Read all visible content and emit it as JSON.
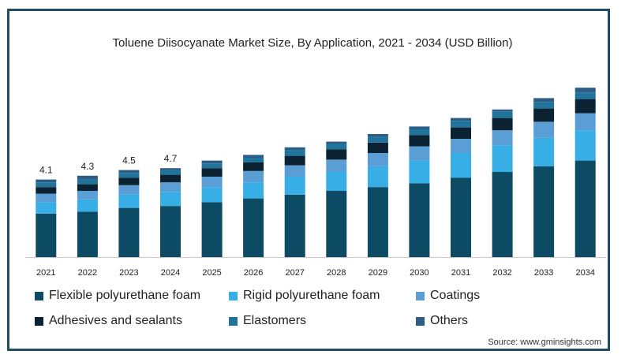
{
  "chart_data": {
    "type": "bar",
    "stacked": true,
    "title": "Toluene Diisocyanate Market Size, By Application, 2021 - 2034 (USD Billion)",
    "categories": [
      "2021",
      "2022",
      "2023",
      "2024",
      "2025",
      "2026",
      "2027",
      "2028",
      "2029",
      "2030",
      "2031",
      "2032",
      "2033",
      "2034"
    ],
    "totals_labels": [
      "4.1",
      "4.3",
      "4.5",
      "4.7",
      "",
      "",
      "",
      "",
      "",
      "",
      "",
      "",
      "",
      ""
    ],
    "series": [
      {
        "name": "Flexible polyurethane foam",
        "color": "#0d4a63",
        "values": [
          2.3,
          2.4,
          2.6,
          2.7,
          2.9,
          3.1,
          3.3,
          3.5,
          3.7,
          3.9,
          4.2,
          4.5,
          4.8,
          5.1
        ]
      },
      {
        "name": "Rigid polyurethane foam",
        "color": "#38aee6",
        "values": [
          0.6,
          0.65,
          0.7,
          0.75,
          0.8,
          0.85,
          0.95,
          1.0,
          1.1,
          1.2,
          1.3,
          1.4,
          1.5,
          1.6
        ]
      },
      {
        "name": "Coatings",
        "color": "#5b9ed6",
        "values": [
          0.45,
          0.45,
          0.5,
          0.5,
          0.55,
          0.6,
          0.6,
          0.65,
          0.7,
          0.75,
          0.75,
          0.8,
          0.85,
          0.9
        ]
      },
      {
        "name": "Adhesives and sealants",
        "color": "#0b2233",
        "values": [
          0.35,
          0.35,
          0.4,
          0.4,
          0.45,
          0.45,
          0.5,
          0.55,
          0.55,
          0.6,
          0.6,
          0.65,
          0.7,
          0.75
        ]
      },
      {
        "name": "Elastomers",
        "color": "#20739b",
        "values": [
          0.25,
          0.25,
          0.25,
          0.25,
          0.25,
          0.25,
          0.3,
          0.3,
          0.3,
          0.3,
          0.35,
          0.35,
          0.35,
          0.35
        ]
      },
      {
        "name": "Others",
        "color": "#2b5d86",
        "values": [
          0.15,
          0.2,
          0.15,
          0.1,
          0.15,
          0.15,
          0.15,
          0.1,
          0.15,
          0.15,
          0.15,
          0.1,
          0.2,
          0.25
        ]
      }
    ],
    "ylim": [
      0,
      9.5
    ],
    "grid": false,
    "legend_position": "bottom"
  },
  "source": "Source: www.gminsights.com"
}
